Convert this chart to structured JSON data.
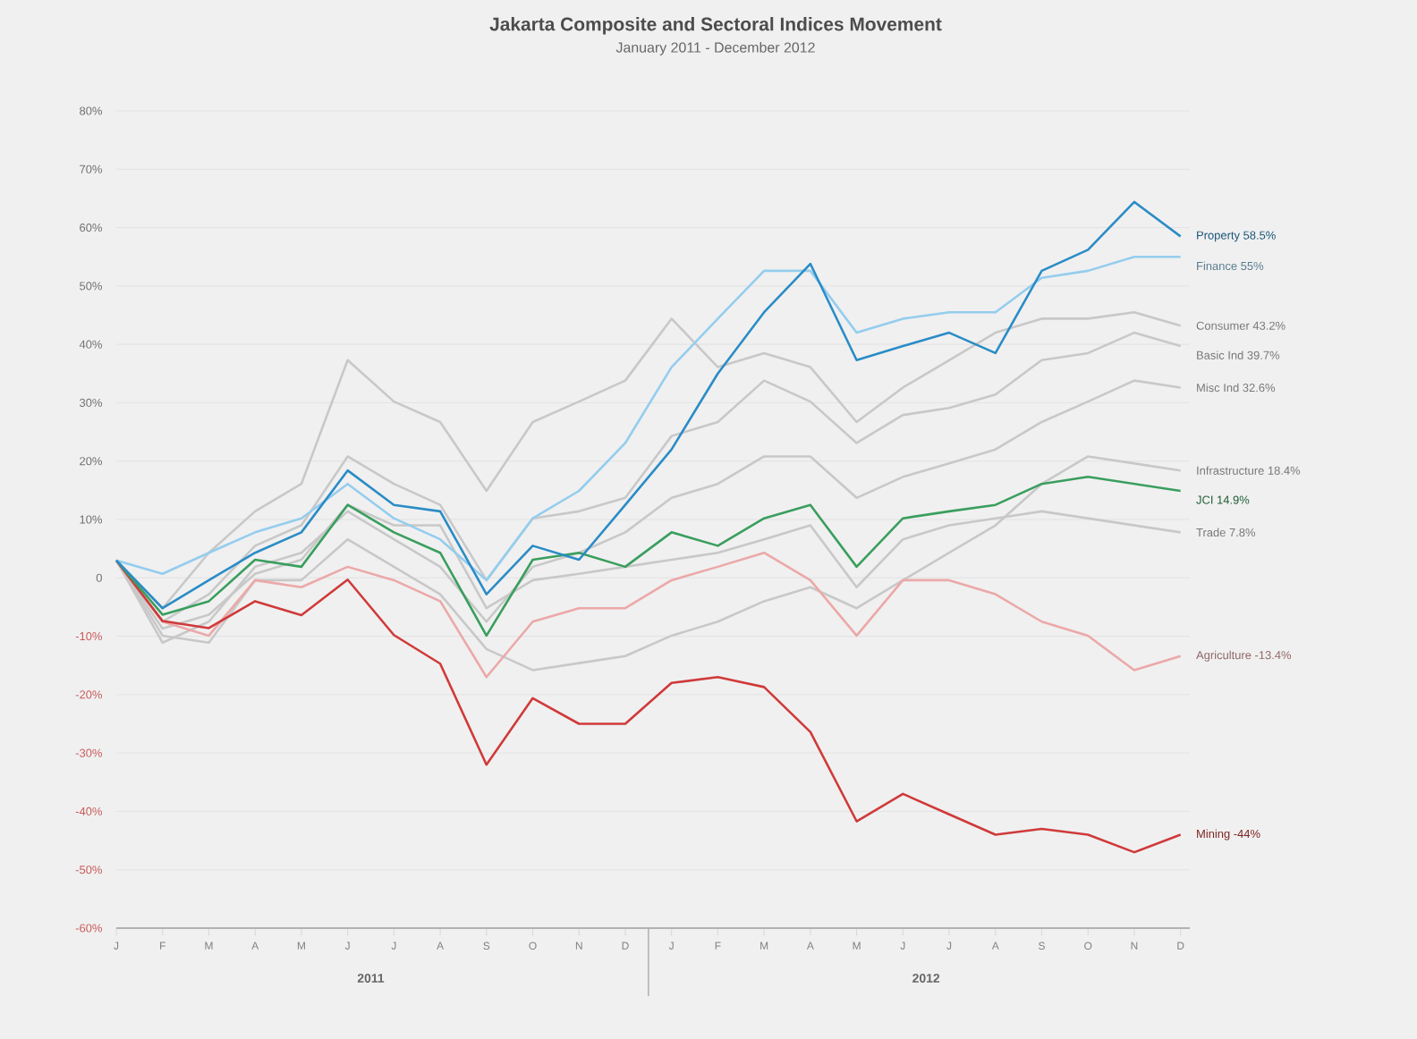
{
  "chart_data": {
    "type": "line",
    "title": "Jakarta Composite and Sectoral Indices Movement",
    "subtitle": "January 2011 - December 2012",
    "categories": [
      "J",
      "F",
      "M",
      "A",
      "M",
      "J",
      "J",
      "A",
      "S",
      "O",
      "N",
      "D",
      "J",
      "F",
      "M",
      "A",
      "M",
      "J",
      "J",
      "A",
      "S",
      "O",
      "N",
      "D"
    ],
    "ylim": [
      -60,
      80
    ],
    "yticks": [
      {
        "value": 80,
        "label": "80%"
      },
      {
        "value": 70,
        "label": "70%"
      },
      {
        "value": 60,
        "label": "60%"
      },
      {
        "value": 50,
        "label": "50%"
      },
      {
        "value": 40,
        "label": "40%"
      },
      {
        "value": 30,
        "label": "30%"
      },
      {
        "value": 20,
        "label": "20%"
      },
      {
        "value": 10,
        "label": "10%"
      },
      {
        "value": 0,
        "label": "0"
      },
      {
        "value": -10,
        "label": "-10%"
      },
      {
        "value": -20,
        "label": "-20%"
      },
      {
        "value": -30,
        "label": "-30%"
      },
      {
        "value": -40,
        "label": "-40%"
      },
      {
        "value": -50,
        "label": "-50%"
      },
      {
        "value": -60,
        "label": "-60%"
      }
    ],
    "grid": "y",
    "legend": false,
    "line_style": "solid",
    "marker": "none",
    "annotations": [
      "2011",
      "2012"
    ],
    "series": [
      {
        "name": "Consumer 43.2%",
        "color": "#c8c8c8",
        "values": [
          3,
          -5.2,
          4.3,
          11.4,
          16.1,
          37.3,
          30.2,
          26.7,
          14.9,
          26.7,
          30.2,
          33.8,
          44.4,
          36.1,
          38.5,
          36.1,
          26.7,
          32.6,
          37.3,
          42,
          44.4,
          44.4,
          45.5,
          43.2
        ]
      },
      {
        "name": "Basic Ind 39.7%",
        "color": "#c8c8c8",
        "values": [
          3,
          -7.5,
          -2.8,
          5.5,
          9,
          20.8,
          16.1,
          12.5,
          -0.4,
          10.2,
          11.4,
          13.7,
          24.3,
          26.7,
          33.8,
          30.2,
          23.1,
          27.9,
          29.1,
          31.4,
          37.3,
          38.5,
          42,
          39.7
        ]
      },
      {
        "name": "Misc Ind 32.6%",
        "color": "#c8c8c8",
        "values": [
          3,
          -11.1,
          -7.5,
          1.9,
          4.3,
          11.4,
          6.6,
          1.9,
          -7.5,
          1.9,
          4.3,
          7.8,
          13.7,
          16.1,
          20.8,
          20.8,
          13.7,
          17.3,
          19.6,
          22,
          26.7,
          30.2,
          33.8,
          32.6
        ]
      },
      {
        "name": "Infrastructure 18.4%",
        "color": "#c8c8c8",
        "values": [
          3,
          -9.9,
          -11.1,
          -0.4,
          -0.4,
          6.6,
          1.9,
          -2.8,
          -12.2,
          -15.8,
          -14.6,
          -13.4,
          -9.9,
          -7.5,
          -4,
          -1.6,
          -5.2,
          -0.4,
          4.3,
          9,
          16.1,
          20.8,
          19.6,
          18.4
        ]
      },
      {
        "name": "Trade 7.8%",
        "color": "#c8c8c8",
        "values": [
          3,
          -8.7,
          -6.3,
          0.7,
          3.1,
          12.5,
          9,
          9,
          -5.2,
          -0.4,
          0.7,
          1.9,
          3.1,
          4.3,
          6.6,
          9,
          -1.6,
          6.6,
          9,
          10.2,
          11.4,
          10.2,
          9,
          7.8
        ]
      },
      {
        "name": "Agriculture -13.4%",
        "color": "#eca8a8",
        "values": [
          3,
          -7.5,
          -9.9,
          -0.4,
          -1.6,
          1.9,
          -0.4,
          -4,
          -17,
          -7.5,
          -5.2,
          -5.2,
          -0.4,
          1.9,
          4.3,
          -0.4,
          -9.9,
          -0.4,
          -0.4,
          -2.8,
          -7.5,
          -9.9,
          -15.8,
          -13.4
        ]
      },
      {
        "name": "Mining -44%",
        "color": "#d03a3a",
        "values": [
          3,
          -7.4,
          -8.6,
          -4,
          -6.4,
          -0.3,
          -9.8,
          -14.7,
          -32,
          -20.6,
          -25,
          -25,
          -18,
          -17,
          -18.7,
          -26.4,
          -41.7,
          -37,
          -40.5,
          -44,
          -43,
          -44,
          -47,
          -44
        ]
      },
      {
        "name": "JCI 14.9%",
        "color": "#3a9e5e",
        "values": [
          3,
          -6.3,
          -4,
          3.1,
          1.9,
          12.5,
          7.8,
          4.3,
          -9.9,
          3.1,
          4.3,
          1.9,
          7.8,
          5.5,
          10.2,
          12.5,
          1.9,
          10.2,
          11.4,
          12.5,
          16.1,
          17.3,
          16.1,
          14.9
        ]
      },
      {
        "name": "Finance 55%",
        "color": "#94cdee",
        "values": [
          3,
          0.7,
          4.3,
          7.8,
          10.2,
          16.1,
          10.2,
          6.6,
          -0.4,
          10.2,
          14.9,
          23.1,
          36.1,
          44.4,
          52.6,
          52.6,
          42,
          44.4,
          45.5,
          45.5,
          51.4,
          52.6,
          55,
          55
        ]
      },
      {
        "name": "Property 58.5%",
        "color": "#2a8cc6",
        "values": [
          3,
          -5.2,
          -0.4,
          4.3,
          7.8,
          18.4,
          12.5,
          11.4,
          -2.8,
          5.5,
          3.1,
          12.5,
          22,
          35,
          45.5,
          53.8,
          37.3,
          39.7,
          42,
          38.5,
          52.6,
          56.2,
          64.4,
          58.5
        ]
      }
    ]
  }
}
